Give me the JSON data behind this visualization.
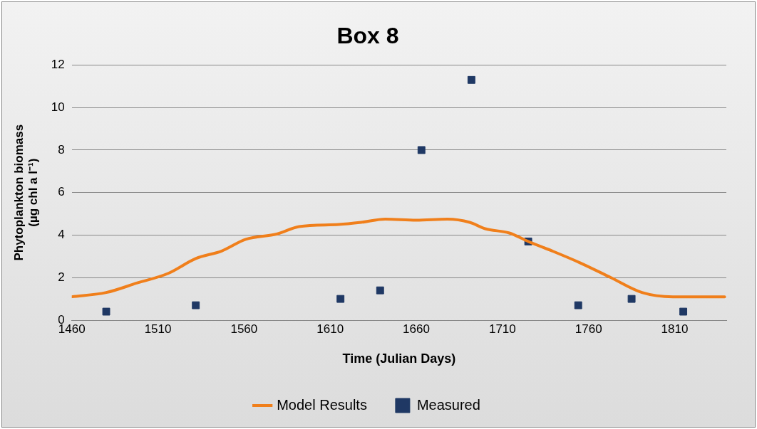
{
  "chart_data": {
    "type": "line",
    "title": "Box 8",
    "xlabel": "Time (Julian Days)",
    "ylabel": "Phytoplankton biomass (µg chl a l⁻¹)",
    "xlim": [
      1460,
      1840
    ],
    "xticks": [
      1460,
      1510,
      1560,
      1610,
      1660,
      1710,
      1760,
      1810
    ],
    "ylim": [
      0,
      12
    ],
    "yticks": [
      0,
      2,
      4,
      6,
      8,
      10,
      12
    ],
    "grid": "y",
    "legend": "bottom",
    "series": [
      {
        "name": "Model Results",
        "type": "line",
        "color": "#f07f1b",
        "marker": "none",
        "line_style": "solid",
        "x": [
          1460,
          1480,
          1498,
          1516,
          1532,
          1547,
          1561,
          1579,
          1592,
          1615,
          1628,
          1642,
          1660,
          1678,
          1691,
          1700,
          1714,
          1725,
          1739,
          1755,
          1773,
          1791,
          1809,
          1839
        ],
        "values": [
          1.1,
          1.3,
          1.75,
          2.2,
          2.9,
          3.25,
          3.8,
          4.05,
          4.4,
          4.5,
          4.6,
          4.75,
          4.7,
          4.75,
          4.6,
          4.3,
          4.1,
          3.7,
          3.25,
          2.7,
          2.0,
          1.3,
          1.1,
          1.1
        ]
      },
      {
        "name": "Measured",
        "type": "scatter",
        "color": "#1f3864",
        "marker": "square",
        "x": [
          1480,
          1532,
          1616,
          1639,
          1663,
          1692,
          1725,
          1754,
          1785,
          1815
        ],
        "values": [
          0.4,
          0.7,
          1.0,
          1.4,
          8.0,
          11.3,
          3.7,
          0.7,
          1.0,
          0.4
        ]
      }
    ]
  }
}
